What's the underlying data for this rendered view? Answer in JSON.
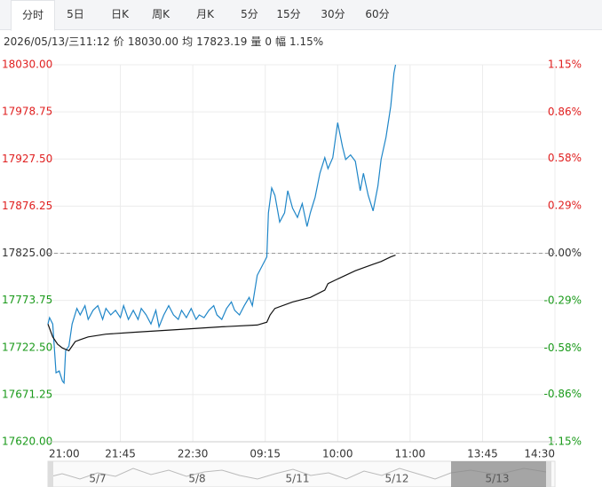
{
  "tabs": [
    "分时",
    "5日",
    "日K",
    "周K",
    "月K",
    "5分",
    "15分",
    "30分",
    "60分"
  ],
  "info": [
    "2026/05/13/三11:12",
    "价",
    "18030.00",
    "均",
    "17823.19",
    "量",
    "0",
    "幅",
    "1.15%"
  ],
  "chart_data": {
    "type": "line",
    "ylim": [
      17620,
      18030
    ],
    "yticks": [
      {
        "value": 17620,
        "label": "17620.00"
      },
      {
        "value": 17671.25,
        "label": "17671.25"
      },
      {
        "value": 17722.5,
        "label": "17722.50"
      },
      {
        "value": 17773.75,
        "label": "17773.75"
      },
      {
        "value": 17825,
        "label": "17825.00"
      },
      {
        "value": 17876.25,
        "label": "17876.25"
      },
      {
        "value": 17927.5,
        "label": "17927.50"
      },
      {
        "value": 17978.75,
        "label": "17978.75"
      },
      {
        "value": 18030,
        "label": "18030.00"
      }
    ],
    "y2lim": [
      -1.15,
      1.15
    ],
    "y2ticks": [
      {
        "value": -1.15,
        "label": "-1.15%"
      },
      {
        "value": -0.86,
        "label": "-0.86%"
      },
      {
        "value": -0.58,
        "label": "-0.58%"
      },
      {
        "value": -0.29,
        "label": "-0.29%"
      },
      {
        "value": 0,
        "label": "0.00%"
      },
      {
        "value": 0.29,
        "label": "0.29%"
      },
      {
        "value": 0.58,
        "label": "0.58%"
      },
      {
        "value": 0.86,
        "label": "0.86%"
      },
      {
        "value": 1.15,
        "label": "1.15%"
      }
    ],
    "xlim": [
      0,
      315
    ],
    "xticks": [
      {
        "value": 0,
        "label": "21:00"
      },
      {
        "value": 45,
        "label": "21:45"
      },
      {
        "value": 90,
        "label": "22:30"
      },
      {
        "value": 135,
        "label": "09:15"
      },
      {
        "value": 180,
        "label": "10:00"
      },
      {
        "value": 225,
        "label": "11:00"
      },
      {
        "value": 270,
        "label": "13:45"
      },
      {
        "value": 315,
        "label": "14:30"
      }
    ],
    "reference": 17825,
    "grid": true,
    "series": [
      {
        "color": "#1f86c8",
        "x": [
          0,
          1,
          3,
          5,
          7,
          9,
          10,
          11,
          13,
          15,
          18,
          20,
          23,
          25,
          28,
          31,
          34,
          36,
          39,
          42,
          45,
          47,
          50,
          53,
          56,
          58,
          61,
          64,
          67,
          69,
          72,
          75,
          78,
          81,
          83,
          86,
          89,
          92,
          94,
          97,
          100,
          103,
          105,
          108,
          111,
          114,
          116,
          119,
          122,
          125,
          127,
          130,
          133,
          136,
          137,
          139,
          141,
          144,
          147,
          149,
          152,
          155,
          158,
          161,
          163,
          166,
          169,
          172,
          174,
          177,
          180,
          183,
          185,
          188,
          191,
          194,
          196,
          199,
          202,
          205,
          207,
          210,
          213,
          215,
          216
        ],
        "values": [
          17748,
          17755,
          17748,
          17695,
          17697,
          17686,
          17684,
          17719,
          17724,
          17748,
          17765,
          17758,
          17768,
          17753,
          17763,
          17768,
          17753,
          17765,
          17758,
          17763,
          17755,
          17768,
          17753,
          17763,
          17753,
          17765,
          17758,
          17748,
          17763,
          17745,
          17758,
          17768,
          17758,
          17753,
          17763,
          17755,
          17765,
          17753,
          17758,
          17755,
          17763,
          17768,
          17758,
          17753,
          17765,
          17772,
          17763,
          17758,
          17768,
          17777,
          17768,
          17801,
          17811,
          17821,
          17869,
          17896,
          17888,
          17859,
          17869,
          17893,
          17874,
          17864,
          17879,
          17854,
          17869,
          17886,
          17912,
          17929,
          17917,
          17929,
          17967,
          17941,
          17927,
          17932,
          17925,
          17893,
          17912,
          17888,
          17871,
          17898,
          17927,
          17951,
          17985,
          18021,
          18030
        ]
      },
      {
        "color": "#111111",
        "x": [
          0,
          3,
          6,
          9,
          13,
          17,
          20,
          25,
          36,
          53,
          81,
          108,
          130,
          136,
          138,
          141,
          152,
          163,
          172,
          174,
          180,
          191,
          202,
          207,
          213,
          216
        ],
        "values": [
          17748,
          17734,
          17726,
          17722,
          17719,
          17729,
          17731,
          17734,
          17737,
          17739,
          17742,
          17745,
          17747,
          17750,
          17758,
          17765,
          17772,
          17777,
          17785,
          17792,
          17797,
          17806,
          17813,
          17816,
          17821,
          17823
        ]
      }
    ]
  },
  "navigator": {
    "labels": [
      "5/7",
      "5/8",
      "5/11",
      "5/12",
      "5/13"
    ]
  }
}
